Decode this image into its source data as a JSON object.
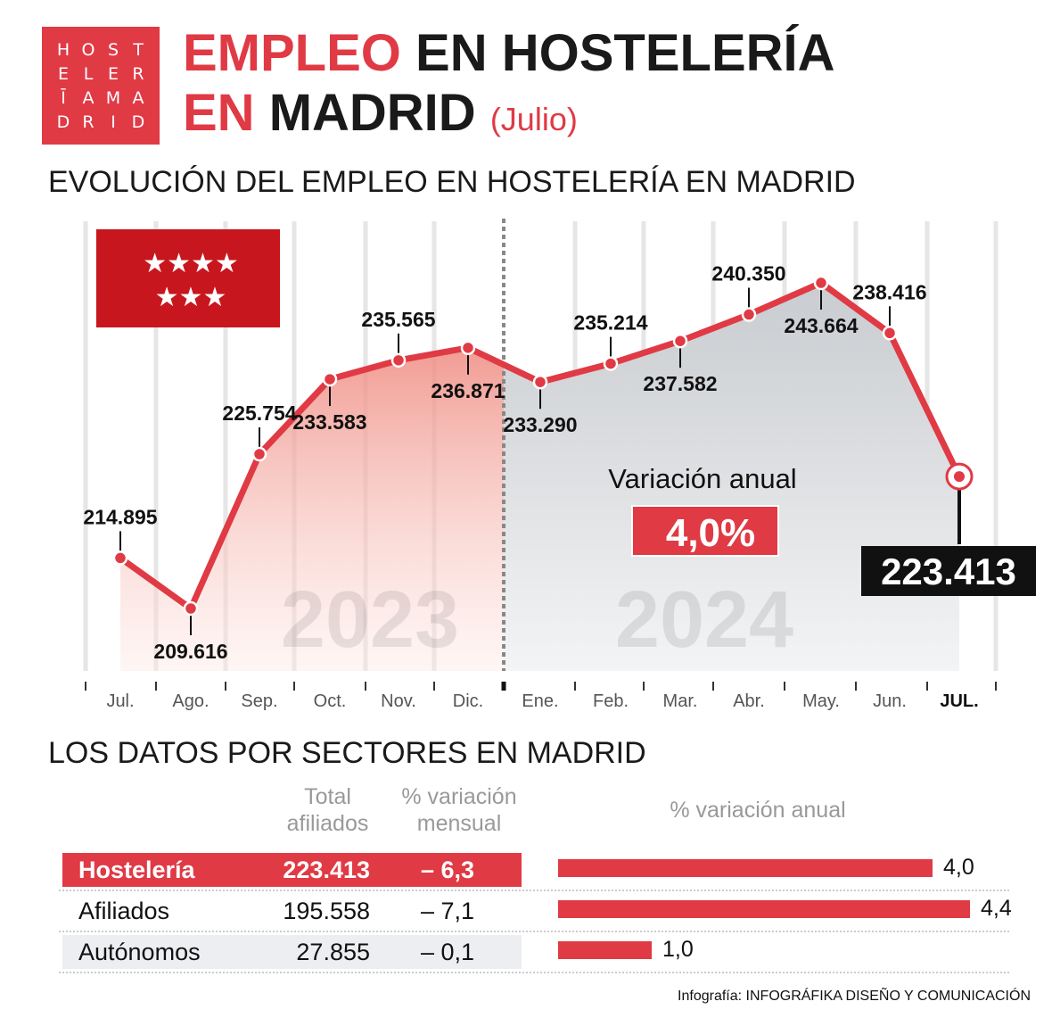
{
  "logo": {
    "letters": [
      "H",
      "O",
      "S",
      "T",
      "E",
      "L",
      "E",
      "R",
      "Ī",
      "A",
      "M",
      "A",
      "D",
      "R",
      "I",
      "D"
    ]
  },
  "header": {
    "title_red": "EMPLEO",
    "title_black1": "EN HOSTELERÍA",
    "title_red2": "EN",
    "title_black2": "MADRID",
    "subtitle": "(Julio)"
  },
  "chart_section_title": "EVOLUCIÓN DEL EMPLEO EN HOSTELERÍA EN MADRID",
  "colors": {
    "accent": "#e03a45",
    "dark": "#111111",
    "flag": "#c8161e"
  },
  "flag_icon": "madrid-flag-seven-stars",
  "chart_data": {
    "type": "line",
    "categories": [
      "Jul.",
      "Ago.",
      "Sep.",
      "Oct.",
      "Nov.",
      "Dic.",
      "Ene.",
      "Feb.",
      "Mar.",
      "Abr.",
      "May.",
      "Jun.",
      "JUL."
    ],
    "values": [
      214895,
      209616,
      225754,
      233583,
      235565,
      236871,
      233290,
      235214,
      237582,
      240350,
      243664,
      238416,
      223413
    ],
    "labels": [
      "214.895",
      "209.616",
      "225.754",
      "233.583",
      "235.565",
      "236.871",
      "233.290",
      "235.214",
      "237.582",
      "240.350",
      "243.664",
      "238.416",
      "223.413"
    ],
    "year_labels": [
      "2023",
      "2024"
    ],
    "annotation": {
      "title": "Variación anual",
      "value": "4,0%"
    },
    "grid": true
  },
  "sectors": {
    "title": "LOS DATOS POR SECTORES EN MADRID",
    "headers": {
      "total": [
        "Total",
        "afiliados"
      ],
      "monthly": [
        "% variación",
        "mensual"
      ],
      "annual": "% variación anual"
    },
    "rows": [
      {
        "name": "Hostelería",
        "total": "223.413",
        "monthly": "– 6,3",
        "annual": 4.0,
        "annual_label": "4,0"
      },
      {
        "name": "Afiliados",
        "total": "195.558",
        "monthly": "– 7,1",
        "annual": 4.4,
        "annual_label": "4,4"
      },
      {
        "name": "Autónomos",
        "total": "27.855",
        "monthly": "– 0,1",
        "annual": 1.0,
        "annual_label": "1,0"
      }
    ]
  },
  "credit": "Infografía: INFOGRÁFIKA DISEÑO Y COMUNICACIÓN"
}
